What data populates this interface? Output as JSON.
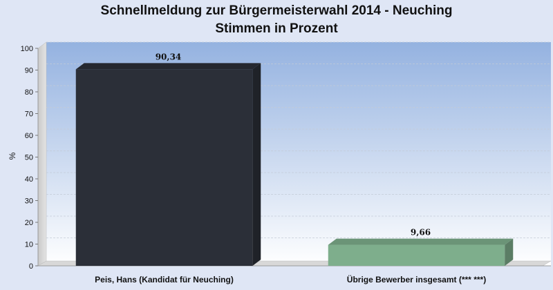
{
  "chart_data": {
    "type": "bar",
    "title": [
      "Schnellmeldung zur Bürgermeisterwahl 2014 - Neuching",
      "Stimmen in Prozent"
    ],
    "ylabel": "%",
    "xlabel": "",
    "categories": [
      "Peis, Hans (Kandidat für Neuching)",
      "Übrige Bewerber insgesamt (***  ***)"
    ],
    "values": [
      90.34,
      9.66
    ],
    "value_labels": [
      "90,34",
      "9,66"
    ],
    "ylim": [
      0,
      100
    ],
    "yticks": [
      "0",
      "10",
      "20",
      "30",
      "40",
      "50",
      "60",
      "70",
      "80",
      "90",
      "100"
    ],
    "grid": true,
    "legend": "none",
    "colors": {
      "bar_1": "#2b2f38",
      "bar_2": "#7eae8c",
      "plot_top": "#94b2e0",
      "plot_bottom": "#ffffff",
      "page_background": "#dfe6f5"
    }
  }
}
